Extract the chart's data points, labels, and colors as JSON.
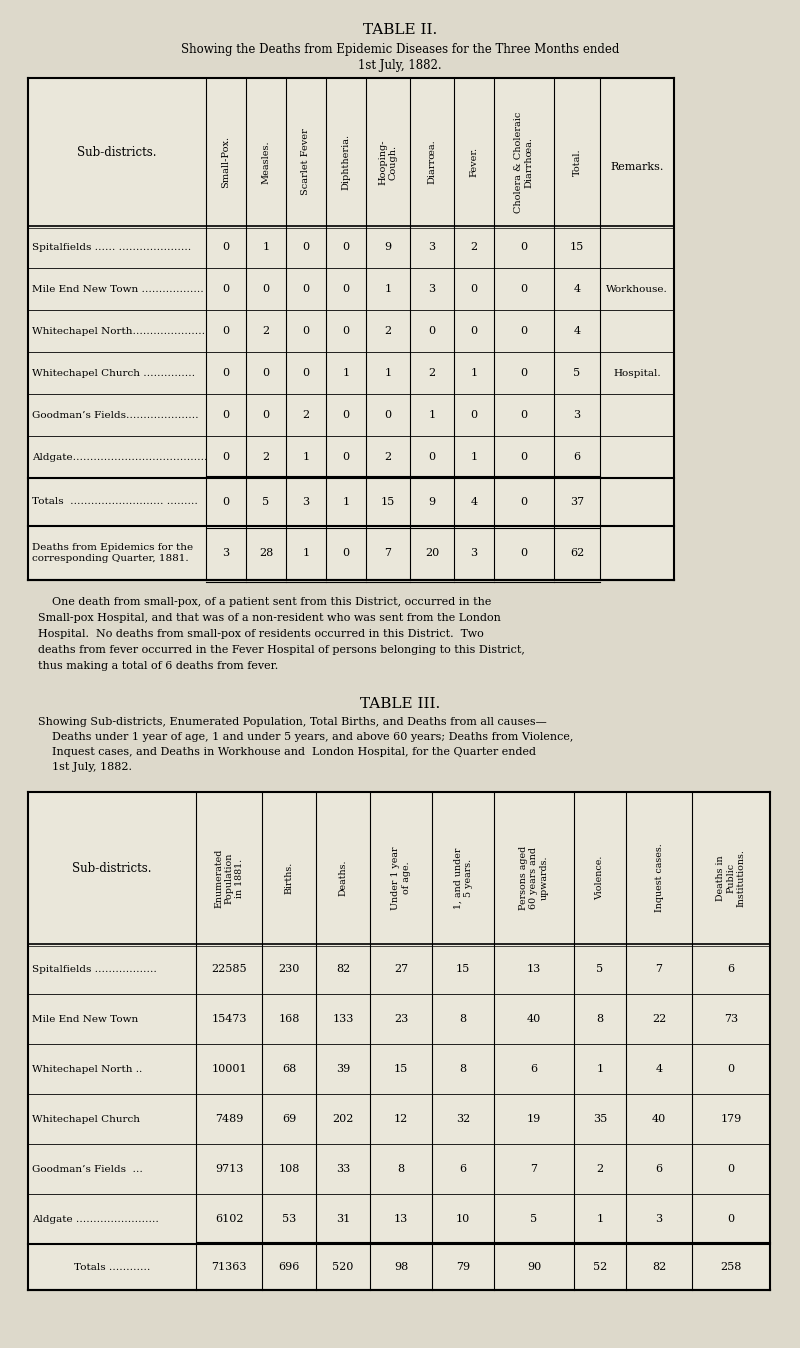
{
  "bg_color": "#ddd9cb",
  "table_bg": "#eae7da",
  "title2": "TABLE II.",
  "subtitle2_1": "Showing the Deaths from Epidemic Diseases for the Three Months ended",
  "subtitle2_2": "1st July, 1882.",
  "t2_col_headers": [
    "Small-Pox.",
    "Measles.",
    "Scarlet Fever",
    "Diphtheria.",
    "Hooping-\nCough.",
    "Diarrœa.",
    "Fever.",
    "Cholera & Choleraic\nDiarrhœa.",
    "Total.",
    "Remarks."
  ],
  "t2_rows": [
    [
      "Spitalfields …… …………………",
      "0",
      "1",
      "0",
      "0",
      "9",
      "3",
      "2",
      "0",
      "15",
      ""
    ],
    [
      "Mile End New Town ………………",
      "0",
      "0",
      "0",
      "0",
      "1",
      "3",
      "0",
      "0",
      "4",
      "Workhouse."
    ],
    [
      "Whitechapel North…………………",
      "0",
      "2",
      "0",
      "0",
      "2",
      "0",
      "0",
      "0",
      "4",
      ""
    ],
    [
      "Whitechapel Church ……………",
      "0",
      "0",
      "0",
      "1",
      "1",
      "2",
      "1",
      "0",
      "5",
      "Hospital."
    ],
    [
      "Goodman’s Fields…………………",
      "0",
      "0",
      "2",
      "0",
      "0",
      "1",
      "0",
      "0",
      "3",
      ""
    ],
    [
      "Aldgate…………………………………",
      "0",
      "2",
      "1",
      "0",
      "2",
      "0",
      "1",
      "0",
      "6",
      ""
    ]
  ],
  "t2_totals": [
    "Totals  ……………………… ………",
    "0",
    "5",
    "3",
    "1",
    "15",
    "9",
    "4",
    "0",
    "37",
    ""
  ],
  "t2_prev_label": "Deaths from Epidemics for the\ncorresponding Quarter, 1881.",
  "t2_prev": [
    "3",
    "28",
    "1",
    "0",
    "7",
    "20",
    "3",
    "0",
    "62"
  ],
  "footnote_lines": [
    "    One death from small-pox, of a patient sent from this District, occurred in the",
    "Small-pox Hospital, and that was of a non-resident who was sent from the London",
    "Hospital.  No deaths from small-pox of residents occurred in this District.  Two",
    "deaths from fever occurred in the Fever Hospital of persons belonging to this District,",
    "thus making a total of 6 deaths from fever."
  ],
  "title3": "TABLE III.",
  "subtitle3_lines": [
    "Showing Sub-districts, Enumerated Population, Total Births, and Deaths from all causes—",
    "    Deaths under 1 year of age, 1 and under 5 years, and above 60 years; Deaths from Violence,",
    "    Inquest cases, and Deaths in Workhouse and  London Hospital, for the Quarter ended",
    "    1st July, 1882."
  ],
  "t3_col_headers": [
    "Enumerated\nPopulation\nin 1881.",
    "Births.",
    "Deaths.",
    "Under 1 year\nof age.",
    "1, and under\n5 years.",
    "Persons aged\n60 years and\nupwards.",
    "Violence.",
    "Inquest cases.",
    "Deaths in\nPublic\nInstitutions."
  ],
  "t3_rows": [
    [
      "Spitalfields ………………",
      "22585",
      "230",
      "82",
      "27",
      "15",
      "13",
      "5",
      "7",
      "6"
    ],
    [
      "Mile End New Town",
      "15473",
      "168",
      "133",
      "23",
      "8",
      "40",
      "8",
      "22",
      "73"
    ],
    [
      "Whitechapel North ..",
      "10001",
      "68",
      "39",
      "15",
      "8",
      "6",
      "1",
      "4",
      "0"
    ],
    [
      "Whitechapel Church",
      "7489",
      "69",
      "202",
      "12",
      "32",
      "19",
      "35",
      "40",
      "179"
    ],
    [
      "Goodman’s Fields  …",
      "9713",
      "108",
      "33",
      "8",
      "6",
      "7",
      "2",
      "6",
      "0"
    ],
    [
      "Aldgate ……………………",
      "6102",
      "53",
      "31",
      "13",
      "10",
      "5",
      "1",
      "3",
      "0"
    ]
  ],
  "t3_totals": [
    "Totals …………",
    "71363",
    "696",
    "520",
    "98",
    "79",
    "90",
    "52",
    "82",
    "258"
  ]
}
